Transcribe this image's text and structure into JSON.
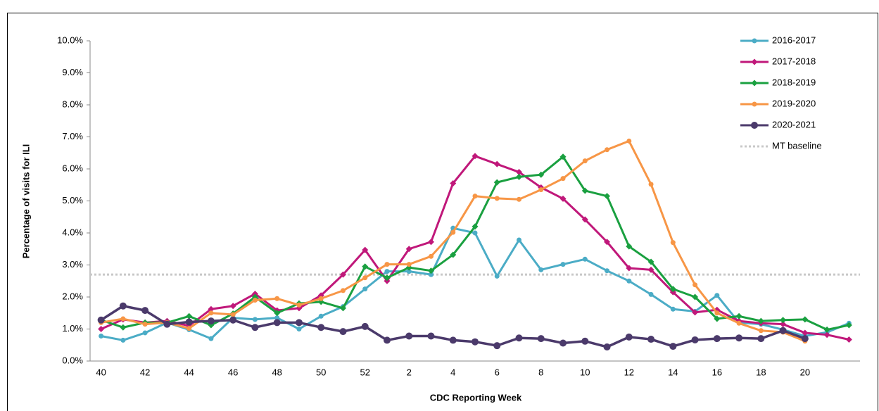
{
  "chart_data": {
    "type": "line",
    "x_label": "CDC Reporting Week",
    "y_label": "Percentage of visits for ILI",
    "categories": [
      "40",
      null,
      "42",
      null,
      "44",
      null,
      "46",
      null,
      "48",
      null,
      "50",
      null,
      "52",
      null,
      "2",
      null,
      "4",
      null,
      "6",
      null,
      "8",
      null,
      "10",
      null,
      "12",
      null,
      "14",
      null,
      "16",
      null,
      "18",
      null,
      "20",
      null,
      null
    ],
    "ylim": [
      0,
      10
    ],
    "yticks": [
      {
        "value": 0,
        "label": "0.0%"
      },
      {
        "value": 1,
        "label": "1.0%"
      },
      {
        "value": 2,
        "label": "2.0%"
      },
      {
        "value": 3,
        "label": "3.0%"
      },
      {
        "value": 4,
        "label": "4.0%"
      },
      {
        "value": 5,
        "label": "5.0%"
      },
      {
        "value": 6,
        "label": "6.0%"
      },
      {
        "value": 7,
        "label": "7.0%"
      },
      {
        "value": 8,
        "label": "8.0%"
      },
      {
        "value": 9,
        "label": "9.0%"
      },
      {
        "value": 10,
        "label": "10.0%"
      }
    ],
    "grid": false,
    "legend_position": "upper-right",
    "series": [
      {
        "name": "2016-2017",
        "color": "#4bacc6",
        "marker": "circle",
        "values": [
          0.78,
          0.65,
          0.88,
          1.2,
          0.98,
          0.7,
          1.35,
          1.3,
          1.35,
          1.0,
          1.4,
          1.7,
          2.25,
          2.8,
          2.8,
          2.7,
          4.15,
          4.0,
          2.65,
          3.78,
          2.85,
          3.02,
          3.18,
          2.82,
          2.5,
          2.08,
          1.62,
          1.55,
          2.05,
          1.2,
          1.15,
          0.98,
          0.78,
          0.9,
          1.18
        ]
      },
      {
        "name": "2017-2018",
        "color": "#c0187a",
        "marker": "diamond",
        "values": [
          1.0,
          1.3,
          1.2,
          1.25,
          1.1,
          1.62,
          1.72,
          2.1,
          1.58,
          1.65,
          2.05,
          2.7,
          3.47,
          2.5,
          3.5,
          3.72,
          5.55,
          6.4,
          6.15,
          5.9,
          5.42,
          5.07,
          4.42,
          3.72,
          2.9,
          2.85,
          2.15,
          1.52,
          1.6,
          1.25,
          1.18,
          1.15,
          0.88,
          0.82,
          0.67
        ]
      },
      {
        "name": "2018-2019",
        "color": "#1aa040",
        "marker": "diamond",
        "values": [
          1.28,
          1.05,
          1.2,
          1.2,
          1.4,
          1.12,
          1.48,
          2.0,
          1.5,
          1.8,
          1.85,
          1.65,
          2.95,
          2.6,
          2.92,
          2.82,
          3.32,
          4.2,
          5.58,
          5.75,
          5.82,
          6.38,
          5.32,
          5.15,
          3.58,
          3.1,
          2.25,
          2.0,
          1.32,
          1.4,
          1.25,
          1.28,
          1.3,
          0.98,
          1.12
        ]
      },
      {
        "name": "2019-2020",
        "color": "#f79646",
        "marker": "circle",
        "values": [
          1.2,
          1.32,
          1.15,
          1.2,
          1.02,
          1.5,
          1.45,
          1.9,
          1.95,
          1.75,
          1.95,
          2.2,
          2.6,
          3.02,
          3.02,
          3.27,
          4.02,
          5.15,
          5.08,
          5.05,
          5.35,
          5.7,
          6.25,
          6.6,
          6.87,
          5.52,
          3.7,
          2.38,
          1.5,
          1.18,
          0.95,
          0.9,
          0.62,
          null,
          null
        ]
      },
      {
        "name": "2020-2021",
        "color": "#4b3a6b",
        "marker": "big-circle",
        "values": [
          1.28,
          1.72,
          1.58,
          1.15,
          1.22,
          1.25,
          1.28,
          1.05,
          1.2,
          1.2,
          1.05,
          0.92,
          1.08,
          0.65,
          0.78,
          0.78,
          0.65,
          0.6,
          0.48,
          0.72,
          0.7,
          0.56,
          0.62,
          0.44,
          0.75,
          0.68,
          0.46,
          0.66,
          0.7,
          0.72,
          0.7,
          0.95,
          0.7,
          null,
          null
        ]
      }
    ],
    "reference_lines": [
      {
        "name": "MT baseline",
        "value": 2.7,
        "color": "#c8c8c8",
        "style": "dotted"
      }
    ]
  }
}
